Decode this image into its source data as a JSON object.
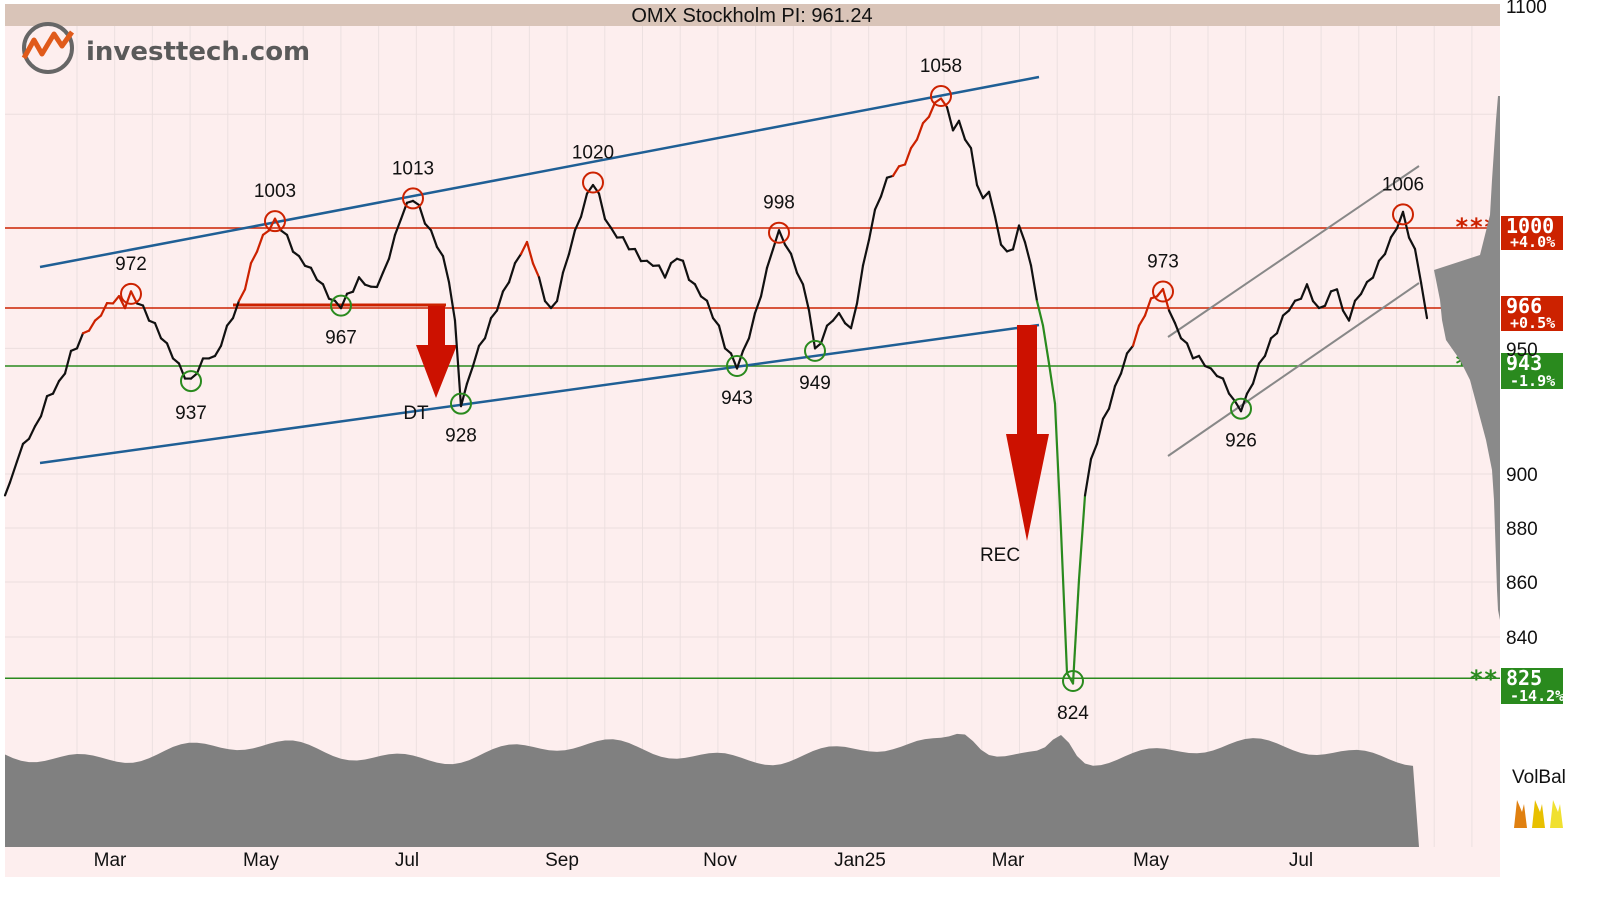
{
  "logo": {
    "text_plain": "invest",
    "text_accent": "tech.com"
  },
  "chart_data": {
    "type": "line",
    "title": "OMX Stockholm PI: 961.24",
    "xlabel": "",
    "ylabel": "",
    "ylim": [
      790,
      1100
    ],
    "x_ticks": [
      "Mar",
      "May",
      "Jul",
      "Sep",
      "Nov",
      "Jan25",
      "Mar",
      "May",
      "Jul"
    ],
    "y_ticks": [
      840,
      860,
      880,
      900,
      950,
      1100
    ],
    "grid": true,
    "series": [
      {
        "values": [
          [
            0,
            893
          ],
          [
            5,
            896
          ],
          [
            12,
            906
          ],
          [
            18,
            911
          ],
          [
            24,
            915
          ],
          [
            30,
            918
          ],
          [
            36,
            924
          ],
          [
            42,
            930
          ],
          [
            48,
            933
          ],
          [
            54,
            936
          ],
          [
            60,
            941
          ],
          [
            66,
            948
          ],
          [
            72,
            951
          ],
          [
            78,
            955
          ],
          [
            84,
            958
          ],
          [
            90,
            960
          ],
          [
            96,
            964
          ],
          [
            102,
            967
          ],
          [
            108,
            969
          ],
          [
            114,
            970
          ],
          [
            120,
            967
          ],
          [
            126,
            972
          ],
          [
            132,
            969
          ],
          [
            138,
            966
          ],
          [
            144,
            962
          ],
          [
            150,
            959
          ],
          [
            156,
            955
          ],
          [
            162,
            951
          ],
          [
            168,
            947
          ],
          [
            174,
            943
          ],
          [
            180,
            939
          ],
          [
            186,
            937
          ],
          [
            192,
            941
          ],
          [
            198,
            945
          ],
          [
            204,
            947
          ],
          [
            210,
            946
          ],
          [
            216,
            952
          ],
          [
            222,
            958
          ],
          [
            228,
            963
          ],
          [
            234,
            968
          ],
          [
            240,
            975
          ],
          [
            246,
            984
          ],
          [
            252,
            991
          ],
          [
            258,
            996
          ],
          [
            264,
            1000
          ],
          [
            270,
            1003
          ],
          [
            276,
            1000
          ],
          [
            282,
            996
          ],
          [
            288,
            991
          ],
          [
            294,
            987
          ],
          [
            300,
            985
          ],
          [
            306,
            982
          ],
          [
            312,
            979
          ],
          [
            318,
            975
          ],
          [
            324,
            971
          ],
          [
            330,
            968
          ],
          [
            336,
            967
          ],
          [
            342,
            971
          ],
          [
            348,
            974
          ],
          [
            354,
            978
          ],
          [
            360,
            977
          ],
          [
            366,
            974
          ],
          [
            372,
            976
          ],
          [
            378,
            980
          ],
          [
            384,
            988
          ],
          [
            390,
            996
          ],
          [
            396,
            1005
          ],
          [
            402,
            1010
          ],
          [
            408,
            1013
          ],
          [
            414,
            1009
          ],
          [
            420,
            1003
          ],
          [
            426,
            998
          ],
          [
            432,
            993
          ],
          [
            438,
            987
          ],
          [
            444,
            978
          ],
          [
            450,
            960
          ],
          [
            456,
            928
          ],
          [
            462,
            935
          ],
          [
            468,
            944
          ],
          [
            474,
            950
          ],
          [
            480,
            955
          ],
          [
            486,
            961
          ],
          [
            492,
            966
          ],
          [
            498,
            972
          ],
          [
            504,
            978
          ],
          [
            510,
            984
          ],
          [
            516,
            990
          ],
          [
            522,
            993
          ],
          [
            528,
            986
          ],
          [
            534,
            978
          ],
          [
            540,
            970
          ],
          [
            546,
            965
          ],
          [
            552,
            970
          ],
          [
            558,
            980
          ],
          [
            564,
            990
          ],
          [
            570,
            998
          ],
          [
            576,
            1006
          ],
          [
            582,
            1014
          ],
          [
            588,
            1020
          ],
          [
            594,
            1014
          ],
          [
            600,
            1005
          ],
          [
            606,
            999
          ],
          [
            612,
            997
          ],
          [
            618,
            995
          ],
          [
            624,
            992
          ],
          [
            630,
            990
          ],
          [
            636,
            987
          ],
          [
            642,
            985
          ],
          [
            648,
            985
          ],
          [
            654,
            983
          ],
          [
            660,
            980
          ],
          [
            666,
            984
          ],
          [
            672,
            988
          ],
          [
            678,
            985
          ],
          [
            684,
            979
          ],
          [
            690,
            975
          ],
          [
            696,
            972
          ],
          [
            702,
            968
          ],
          [
            708,
            963
          ],
          [
            714,
            958
          ],
          [
            720,
            951
          ],
          [
            726,
            947
          ],
          [
            732,
            943
          ],
          [
            738,
            948
          ],
          [
            744,
            955
          ],
          [
            750,
            963
          ],
          [
            756,
            972
          ],
          [
            762,
            982
          ],
          [
            768,
            992
          ],
          [
            774,
            998
          ],
          [
            780,
            994
          ],
          [
            786,
            988
          ],
          [
            792,
            982
          ],
          [
            798,
            975
          ],
          [
            804,
            966
          ],
          [
            810,
            949
          ],
          [
            816,
            953
          ],
          [
            822,
            958
          ],
          [
            828,
            962
          ],
          [
            834,
            963
          ],
          [
            840,
            961
          ],
          [
            846,
            957
          ],
          [
            852,
            969
          ],
          [
            858,
            983
          ],
          [
            864,
            996
          ],
          [
            870,
            1007
          ],
          [
            876,
            1015
          ],
          [
            882,
            1021
          ],
          [
            888,
            1024
          ],
          [
            894,
            1026
          ],
          [
            900,
            1029
          ],
          [
            906,
            1034
          ],
          [
            912,
            1040
          ],
          [
            918,
            1045
          ],
          [
            924,
            1050
          ],
          [
            930,
            1054
          ],
          [
            936,
            1058
          ],
          [
            942,
            1052
          ],
          [
            948,
            1044
          ],
          [
            954,
            1046
          ],
          [
            960,
            1040
          ],
          [
            966,
            1034
          ],
          [
            972,
            1020
          ],
          [
            978,
            1012
          ],
          [
            984,
            1017
          ],
          [
            990,
            1004
          ],
          [
            996,
            994
          ],
          [
            1002,
            989
          ],
          [
            1008,
            992
          ],
          [
            1014,
            1000
          ],
          [
            1020,
            995
          ],
          [
            1026,
            983
          ],
          [
            1032,
            970
          ],
          [
            1038,
            958
          ],
          [
            1044,
            945
          ],
          [
            1050,
            927
          ],
          [
            1056,
            880
          ],
          [
            1062,
            826
          ],
          [
            1068,
            824
          ],
          [
            1074,
            860
          ],
          [
            1080,
            893
          ],
          [
            1086,
            905
          ],
          [
            1092,
            913
          ],
          [
            1098,
            921
          ],
          [
            1104,
            927
          ],
          [
            1110,
            934
          ],
          [
            1116,
            941
          ],
          [
            1122,
            947
          ],
          [
            1128,
            952
          ],
          [
            1134,
            958
          ],
          [
            1140,
            964
          ],
          [
            1146,
            969
          ],
          [
            1152,
            972
          ],
          [
            1158,
            973
          ],
          [
            1164,
            966
          ],
          [
            1170,
            959
          ],
          [
            1176,
            955
          ],
          [
            1182,
            951
          ],
          [
            1188,
            947
          ],
          [
            1194,
            946
          ],
          [
            1200,
            944
          ],
          [
            1206,
            941
          ],
          [
            1212,
            940
          ],
          [
            1218,
            937
          ],
          [
            1224,
            933
          ],
          [
            1230,
            928
          ],
          [
            1236,
            926
          ],
          [
            1242,
            931
          ],
          [
            1248,
            937
          ],
          [
            1254,
            943
          ],
          [
            1260,
            948
          ],
          [
            1266,
            953
          ],
          [
            1272,
            957
          ],
          [
            1278,
            962
          ],
          [
            1284,
            966
          ],
          [
            1290,
            968
          ],
          [
            1296,
            971
          ],
          [
            1302,
            975
          ],
          [
            1308,
            970
          ],
          [
            1314,
            965
          ],
          [
            1320,
            968
          ],
          [
            1326,
            972
          ],
          [
            1332,
            975
          ],
          [
            1338,
            964
          ],
          [
            1344,
            962
          ],
          [
            1350,
            968
          ],
          [
            1356,
            973
          ],
          [
            1362,
            976
          ],
          [
            1368,
            980
          ],
          [
            1374,
            985
          ],
          [
            1380,
            990
          ],
          [
            1386,
            995
          ],
          [
            1392,
            1001
          ],
          [
            1398,
            1006
          ],
          [
            1404,
            997
          ],
          [
            1410,
            990
          ],
          [
            1416,
            978
          ],
          [
            1422,
            961
          ]
        ]
      }
    ],
    "annotations": {
      "peaks": [
        {
          "label": "972",
          "i": 126,
          "value": 972
        },
        {
          "label": "1003",
          "i": 270,
          "value": 1003
        },
        {
          "label": "1013",
          "i": 408,
          "value": 1013
        },
        {
          "label": "1020",
          "i": 588,
          "value": 1020
        },
        {
          "label": "998",
          "i": 774,
          "value": 998
        },
        {
          "label": "1058",
          "i": 936,
          "value": 1058
        },
        {
          "label": "973",
          "i": 1158,
          "value": 973
        },
        {
          "label": "1006",
          "i": 1398,
          "value": 1006
        }
      ],
      "troughs": [
        {
          "label": "937",
          "i": 186,
          "value": 937
        },
        {
          "label": "967",
          "i": 336,
          "value": 967
        },
        {
          "label": "928",
          "i": 456,
          "value": 928
        },
        {
          "label": "943",
          "i": 732,
          "value": 943
        },
        {
          "label": "949",
          "i": 810,
          "value": 949
        },
        {
          "label": "824",
          "i": 1068,
          "value": 824
        },
        {
          "label": "926",
          "i": 1236,
          "value": 926
        }
      ],
      "signals": [
        {
          "label": "DT"
        },
        {
          "label": "REC"
        }
      ]
    },
    "levels": [
      {
        "price": "1000",
        "pct": "+4.0%",
        "stars": "***",
        "kind": "resistance",
        "value": 1000
      },
      {
        "price": "966",
        "pct": "+0.5%",
        "stars": "***",
        "kind": "resistance",
        "value": 966
      },
      {
        "price": "943",
        "pct": "-1.9%",
        "stars": "***",
        "kind": "support",
        "value": 943
      },
      {
        "price": "825",
        "pct": "-14.2%",
        "stars": "**",
        "kind": "support",
        "value": 825
      }
    ],
    "volume_label": "VolBal",
    "colors": {
      "background": "#fdeeee",
      "title_bar": "#d9c4b8",
      "price_line": "#111111",
      "rising_segment": "#cc2200",
      "falling_segment": "#2a8a1e",
      "trend_channel": "#1f5f95",
      "short_channel": "#888888",
      "resistance": "#cc2200",
      "support": "#2a8a1e",
      "volume": "#808080",
      "signal_arrow": "#cc1100"
    }
  }
}
